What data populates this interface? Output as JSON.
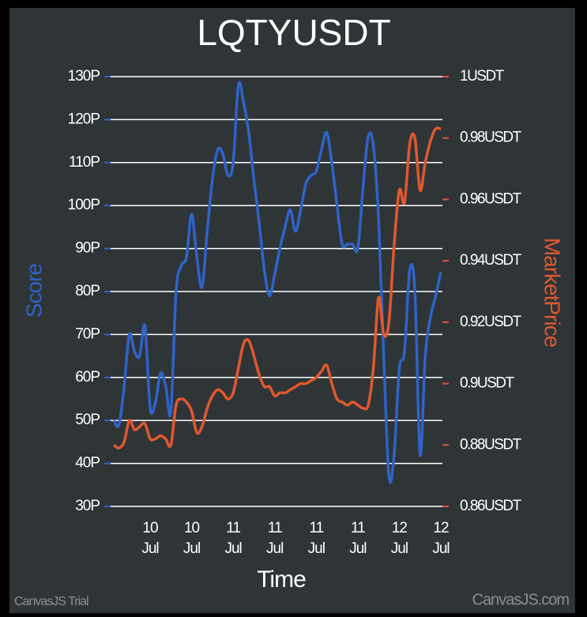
{
  "chart_data": {
    "type": "line",
    "title": "LQTYUSDT",
    "x_label": "Time",
    "y_label": "Score",
    "y2_label": "MarketPrice",
    "watermark_left": "CanvasJS Trial",
    "watermark_right": "CanvasJS.com",
    "categories": [
      null,
      null,
      null,
      null,
      null,
      null,
      null,
      "10 Jul",
      null,
      null,
      null,
      null,
      null,
      null,
      null,
      "10 Jul",
      null,
      null,
      null,
      null,
      null,
      null,
      null,
      "11 Jul",
      null,
      null,
      null,
      null,
      null,
      null,
      null,
      "11 Jul",
      null,
      null,
      null,
      null,
      null,
      null,
      null,
      "11 Jul",
      null,
      null,
      null,
      null,
      null,
      null,
      null,
      "11 Jul",
      null,
      null,
      null,
      null,
      null,
      null,
      null,
      "12 Jul",
      null,
      null,
      null,
      null,
      null,
      null,
      null,
      "12 Jul"
    ],
    "series": [
      {
        "name": "Score",
        "color": "#2f63c8",
        "axis": "y",
        "values": [
          50,
          49,
          58,
          70,
          66,
          65,
          72,
          53,
          54,
          61,
          58,
          52,
          80,
          86,
          88,
          98,
          88,
          81,
          94,
          106,
          113,
          112,
          107,
          110,
          128,
          124,
          117,
          106,
          96,
          85,
          79,
          84,
          90,
          95,
          99,
          94,
          99,
          105,
          107,
          108,
          113,
          117,
          110,
          100,
          91,
          91,
          91,
          90,
          104,
          116,
          114,
          97,
          65,
          37,
          42,
          62,
          66,
          85,
          80,
          42,
          65,
          74,
          79,
          84.5
        ]
      },
      {
        "name": "MarketPrice",
        "color": "#e0582e",
        "axis": "y2",
        "values": [
          0.88,
          0.879,
          0.881,
          0.888,
          0.885,
          0.886,
          0.887,
          0.882,
          0.882,
          0.883,
          0.882,
          0.88,
          0.893,
          0.895,
          0.894,
          0.891,
          0.884,
          0.886,
          0.892,
          0.896,
          0.898,
          0.897,
          0.895,
          0.897,
          0.905,
          0.913,
          0.914,
          0.909,
          0.903,
          0.899,
          0.899,
          0.896,
          0.897,
          0.897,
          0.898,
          0.899,
          0.9,
          0.9,
          0.901,
          0.902,
          0.904,
          0.906,
          0.9,
          0.895,
          0.894,
          0.893,
          0.894,
          0.893,
          0.892,
          0.893,
          0.905,
          0.928,
          0.916,
          0.92,
          0.945,
          0.963,
          0.959,
          0.978,
          0.98,
          0.963,
          0.972,
          0.979,
          0.983,
          0.983
        ]
      }
    ],
    "ylim": [
      30,
      130
    ],
    "yticks": [
      {
        "value": 30,
        "label": "30P"
      },
      {
        "value": 40,
        "label": "40P"
      },
      {
        "value": 50,
        "label": "50P"
      },
      {
        "value": 60,
        "label": "60P"
      },
      {
        "value": 70,
        "label": "70P"
      },
      {
        "value": 80,
        "label": "80P"
      },
      {
        "value": 90,
        "label": "90P"
      },
      {
        "value": 100,
        "label": "100P"
      },
      {
        "value": 110,
        "label": "110P"
      },
      {
        "value": 120,
        "label": "120P"
      },
      {
        "value": 130,
        "label": "130P"
      }
    ],
    "y2lim": [
      0.86,
      1
    ],
    "y2ticks": [
      {
        "value": 0.86,
        "label": "0.86USDT"
      },
      {
        "value": 0.88,
        "label": "0.88USDT"
      },
      {
        "value": 0.9,
        "label": "0.9USDT"
      },
      {
        "value": 0.92,
        "label": "0.92USDT"
      },
      {
        "value": 0.94,
        "label": "0.94USDT"
      },
      {
        "value": 0.96,
        "label": "0.96USDT"
      },
      {
        "value": 0.98,
        "label": "0.98USDT"
      },
      {
        "value": 1,
        "label": "1USDT"
      }
    ],
    "grid": true
  }
}
